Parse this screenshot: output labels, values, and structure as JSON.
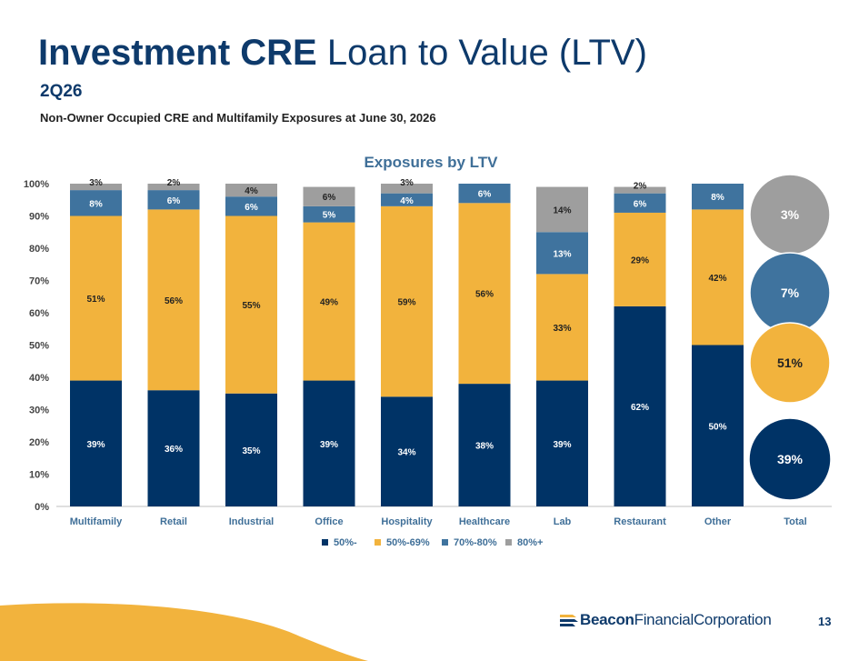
{
  "header": {
    "title_bold": "Investment CRE",
    "title_rest": " Loan to Value (LTV)",
    "subtitle": "2Q26",
    "caption": "Non-Owner Occupied CRE and Multifamily Exposures at June 30, 2026"
  },
  "footer": {
    "logo_bold": "Beacon",
    "logo_rest": "FinancialCorporation",
    "page_number": "13"
  },
  "colors": {
    "series": [
      "#003366",
      "#f2b33d",
      "#3f739e",
      "#9e9e9e"
    ],
    "title": "#0e3a6b"
  },
  "chart_data": {
    "type": "bar",
    "stacked": true,
    "title": "Exposures by LTV",
    "categories": [
      "Multifamily",
      "Retail",
      "Industrial",
      "Office",
      "Hospitality",
      "Healthcare",
      "Lab",
      "Restaurant",
      "Other",
      "Total"
    ],
    "ylim": [
      0,
      100
    ],
    "yticks": [
      "0%",
      "10%",
      "20%",
      "30%",
      "40%",
      "50%",
      "60%",
      "70%",
      "80%",
      "90%",
      "100%"
    ],
    "legend_position": "bottom",
    "grid": false,
    "series": [
      {
        "name": "50%-",
        "values": [
          39,
          36,
          35,
          39,
          34,
          38,
          39,
          62,
          50,
          39
        ]
      },
      {
        "name": "50%-69%",
        "values": [
          51,
          56,
          55,
          49,
          59,
          56,
          33,
          29,
          42,
          51
        ]
      },
      {
        "name": "70%-80%",
        "values": [
          8,
          6,
          6,
          5,
          4,
          6,
          13,
          6,
          8,
          7
        ]
      },
      {
        "name": "80%+",
        "values": [
          3,
          2,
          4,
          6,
          3,
          0,
          14,
          2,
          0,
          3
        ]
      }
    ],
    "total_display": "bubbles"
  }
}
